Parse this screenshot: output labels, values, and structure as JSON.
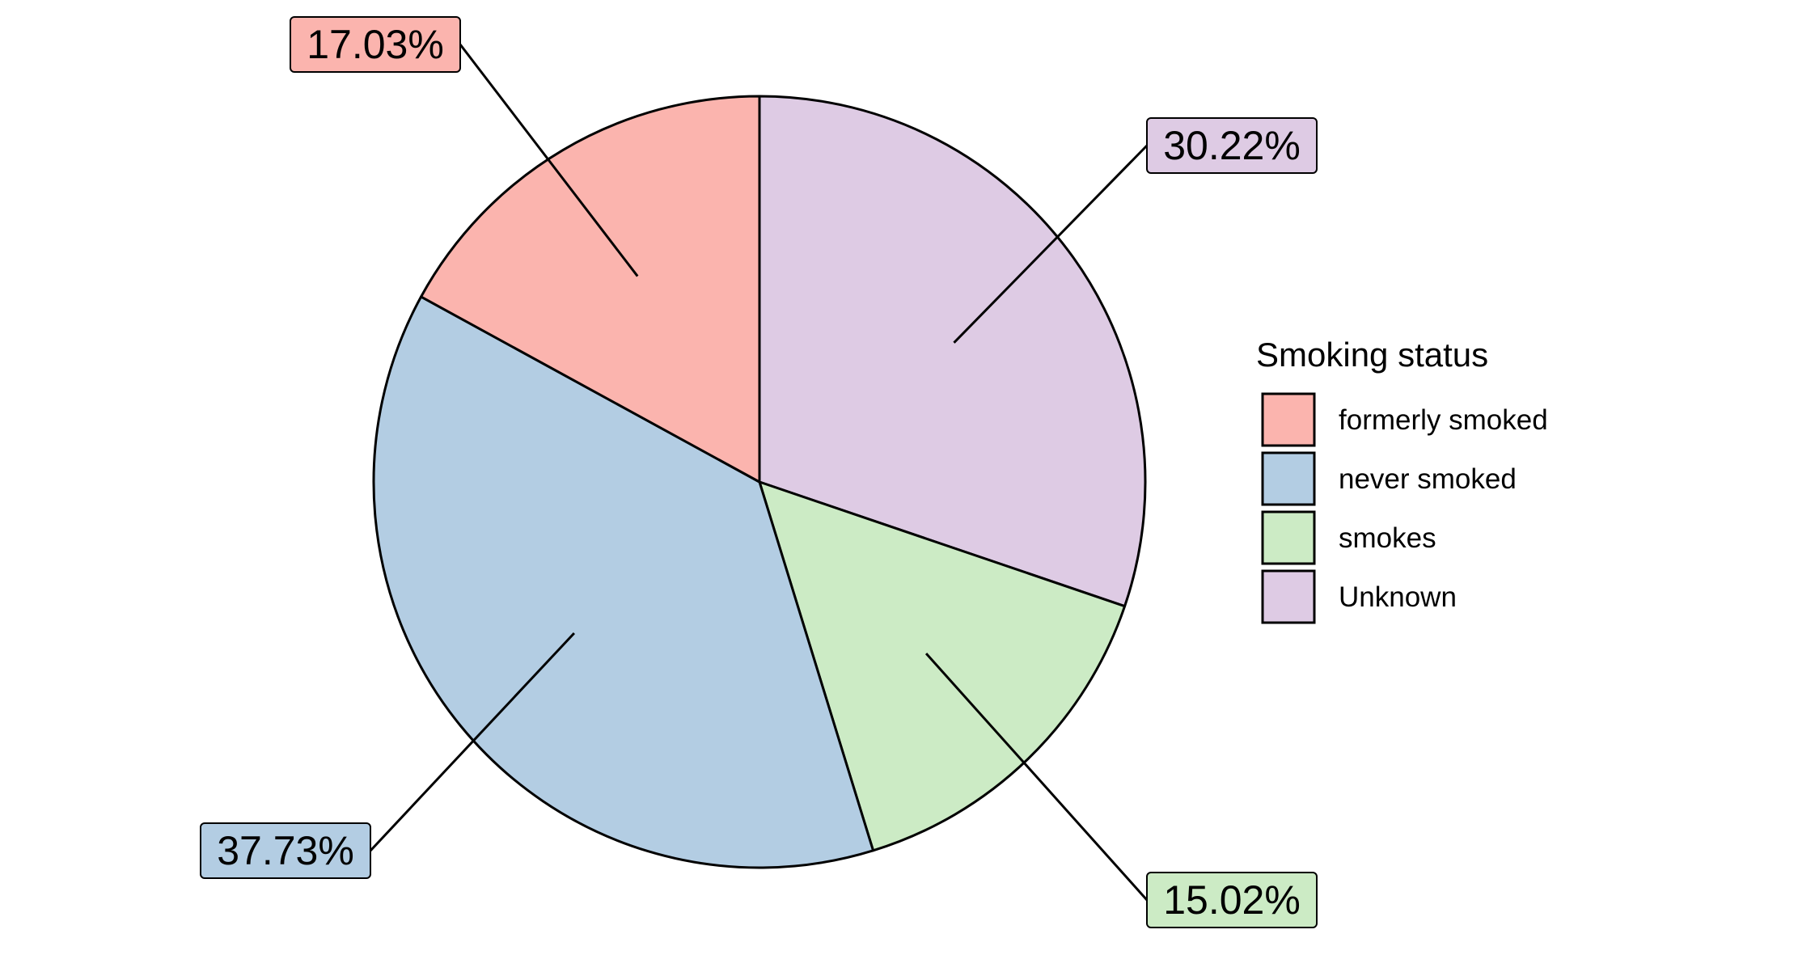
{
  "chart_data": {
    "type": "pie",
    "title": "",
    "categories": [
      "formerly smoked",
      "never smoked",
      "smokes",
      "Unknown"
    ],
    "values": [
      17.03,
      37.73,
      15.02,
      30.22
    ],
    "labels": [
      "17.03%",
      "37.73%",
      "15.02%",
      "30.22%"
    ],
    "colors": [
      "#FBB4AE",
      "#B3CDE3",
      "#CCEBC5",
      "#DECBE4"
    ],
    "legend": {
      "title": "Smoking status",
      "placement": "right"
    }
  }
}
